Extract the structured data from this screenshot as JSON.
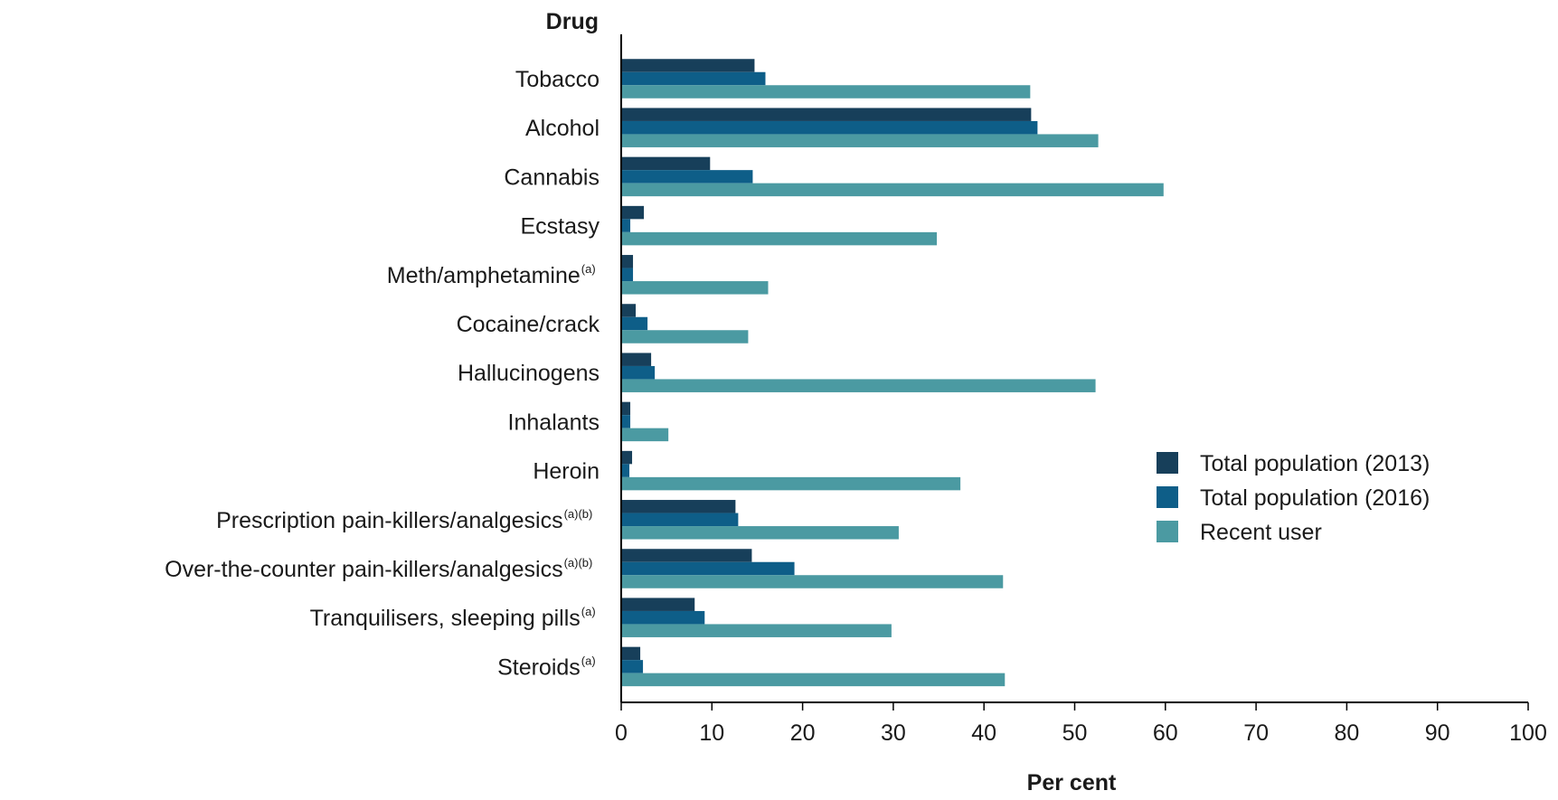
{
  "chart_data": {
    "type": "bar",
    "orientation": "horizontal",
    "ylabel": "Drug",
    "xlabel": "Per cent",
    "xlim": [
      0,
      100
    ],
    "x_ticks": [
      "0",
      "10",
      "20",
      "30",
      "40",
      "50",
      "60",
      "70",
      "80",
      "90",
      "100"
    ],
    "categories": [
      {
        "label": "Tobacco",
        "sup": ""
      },
      {
        "label": "Alcohol",
        "sup": ""
      },
      {
        "label": "Cannabis",
        "sup": ""
      },
      {
        "label": "Ecstasy",
        "sup": ""
      },
      {
        "label": "Meth/amphetamine",
        "sup": "(a)"
      },
      {
        "label": "Cocaine/crack",
        "sup": ""
      },
      {
        "label": "Hallucinogens",
        "sup": ""
      },
      {
        "label": "Inhalants",
        "sup": ""
      },
      {
        "label": "Heroin",
        "sup": ""
      },
      {
        "label": "Prescription pain-killers/analgesics",
        "sup": "(a)(b)"
      },
      {
        "label": "Over-the-counter pain-killers/analgesics",
        "sup": "(a)(b)"
      },
      {
        "label": "Tranquilisers, sleeping pills",
        "sup": "(a)"
      },
      {
        "label": "Steroids",
        "sup": "(a)"
      }
    ],
    "series": [
      {
        "name": "Total population (2013)",
        "color": "#173f5a",
        "values": [
          14.7,
          45.2,
          9.8,
          2.5,
          1.3,
          1.6,
          3.3,
          1.0,
          1.2,
          12.6,
          14.4,
          8.1,
          2.1
        ]
      },
      {
        "name": "Total population (2016)",
        "color": "#0e5e88",
        "values": [
          15.9,
          45.9,
          14.5,
          1.0,
          1.3,
          2.9,
          3.7,
          1.0,
          0.9,
          12.9,
          19.1,
          9.2,
          2.4
        ]
      },
      {
        "name": "Recent user",
        "color": "#4b9aa2",
        "values": [
          45.1,
          52.6,
          59.8,
          34.8,
          16.2,
          14.0,
          52.3,
          5.2,
          37.4,
          30.6,
          42.1,
          29.8,
          42.3
        ]
      }
    ],
    "legend_position": "right",
    "grid": false
  }
}
